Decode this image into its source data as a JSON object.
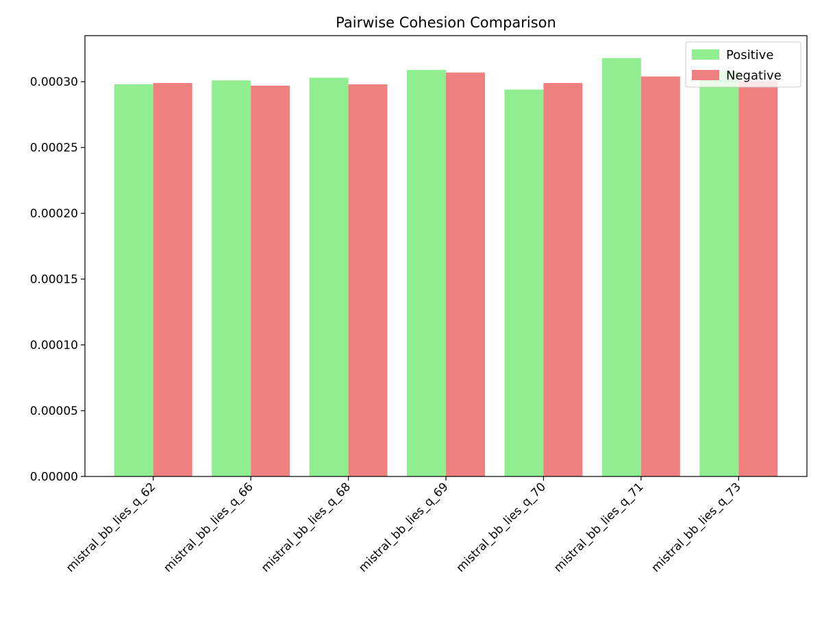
{
  "chart_data": {
    "type": "bar",
    "title": "Pairwise Cohesion Comparison",
    "xlabel": "",
    "ylabel": "",
    "categories": [
      "mistral_bb_lies_q_62",
      "mistral_bb_lies_q_66",
      "mistral_bb_lies_q_68",
      "mistral_bb_lies_q_69",
      "mistral_bb_lies_q_70",
      "mistral_bb_lies_q_71",
      "mistral_bb_lies_q_73"
    ],
    "series": [
      {
        "name": "Positive",
        "color": "#90ee90",
        "values": [
          0.000298,
          0.000301,
          0.000303,
          0.000309,
          0.000294,
          0.000318,
          0.000308
        ]
      },
      {
        "name": "Negative",
        "color": "#f08080",
        "values": [
          0.000299,
          0.000297,
          0.000298,
          0.000307,
          0.000299,
          0.000304,
          0.0003
        ]
      }
    ],
    "ylim": [
      0,
      0.000335
    ],
    "yticks": [
      "0.00000",
      "0.00005",
      "0.00010",
      "0.00015",
      "0.00020",
      "0.00025",
      "0.00030"
    ],
    "ytick_values": [
      0,
      5e-05,
      0.0001,
      0.00015,
      0.0002,
      0.00025,
      0.0003
    ],
    "legend_position": "top-right",
    "grid": false
  }
}
